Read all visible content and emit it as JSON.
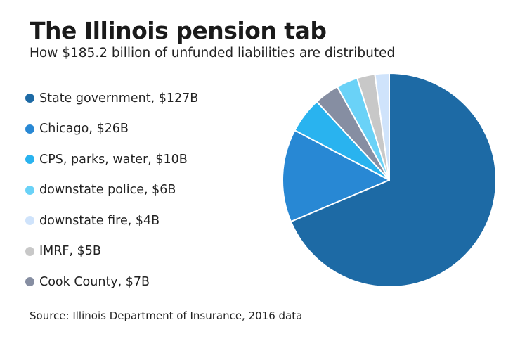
{
  "chart_data": {
    "type": "pie",
    "title": "The Illinois pension tab",
    "subtitle": "How $185.2 billion of unfunded liabilities are distributed",
    "source": "Source: Illinois Department of Insurance, 2016 data",
    "legend_placement": "left",
    "slices": [
      {
        "label": "State government, $127B",
        "value": 127,
        "color": "#1d6aa5"
      },
      {
        "label": "Chicago, $26B",
        "value": 26,
        "color": "#2888d4"
      },
      {
        "label": "CPS, parks, water, $10B",
        "value": 10,
        "color": "#29b3ef"
      },
      {
        "label": "downstate police, $6B",
        "value": 6,
        "color": "#6ad2f7"
      },
      {
        "label": "downstate fire, $4B",
        "value": 4,
        "color": "#cfe3fb"
      },
      {
        "label": "IMRF, $5B",
        "value": 5,
        "color": "#c8c8c8"
      },
      {
        "label": "Cook County, $7B",
        "value": 7,
        "color": "#868ea2"
      }
    ],
    "draw_order": [
      0,
      1,
      2,
      6,
      3,
      5,
      4
    ]
  }
}
